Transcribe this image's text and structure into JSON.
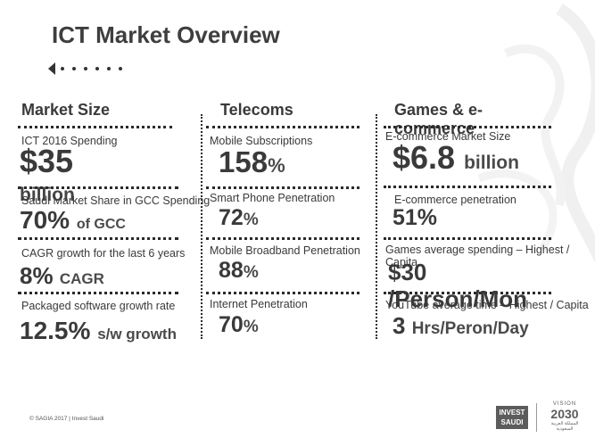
{
  "title": "ICT Market Overview",
  "columns": {
    "market_size": {
      "header": "Market Size",
      "items": [
        {
          "label": "ICT 2016 Spending",
          "value": "$35",
          "unit": "billion"
        },
        {
          "label": "Saudi Market Share in GCC Spending",
          "value": "70%",
          "unit": "of GCC"
        },
        {
          "label": "CAGR growth for the last 6 years",
          "value": "8%",
          "unit": "CAGR"
        },
        {
          "label": "Packaged software growth rate",
          "value": "12.5%",
          "unit": "s/w growth"
        }
      ]
    },
    "telecoms": {
      "header": "Telecoms",
      "items": [
        {
          "label": "Mobile Subscriptions",
          "value": "158",
          "unit": "%"
        },
        {
          "label": "Smart Phone Penetration",
          "value": "72",
          "unit": "%"
        },
        {
          "label": "Mobile Broadband Penetration",
          "value": "88",
          "unit": "%"
        },
        {
          "label": "Internet Penetration",
          "value": "70",
          "unit": "%"
        }
      ]
    },
    "games": {
      "header": "Games & e-commerce",
      "items": [
        {
          "label": "E-commerce Market Size",
          "value": "$6.8",
          "unit": "billion"
        },
        {
          "label": "E-commerce penetration",
          "value": "51%",
          "unit": ""
        },
        {
          "label": "Games average spending – Highest / Capita",
          "value": "$30 /Person/Mon",
          "unit": ""
        },
        {
          "label": "YouTube average time – Highest / Capita",
          "value": "3",
          "unit": "Hrs/Peron/Day"
        }
      ]
    }
  },
  "footer": {
    "copyright": "© SAGIA 2017  |  Invest Saudi",
    "logo_line1": "INVEST",
    "logo_line2": "SAUDI",
    "vision_top": "VISION",
    "vision_year": "2030",
    "vision_sub": "المملكة العربية السعودية"
  },
  "icons": [
    "back-arrow-icon",
    "watermark-calligraphy"
  ],
  "colors": {
    "text": "#3a3a3a",
    "watermark": "#f0f0f0",
    "logo_bg": "#5c5c5c"
  }
}
